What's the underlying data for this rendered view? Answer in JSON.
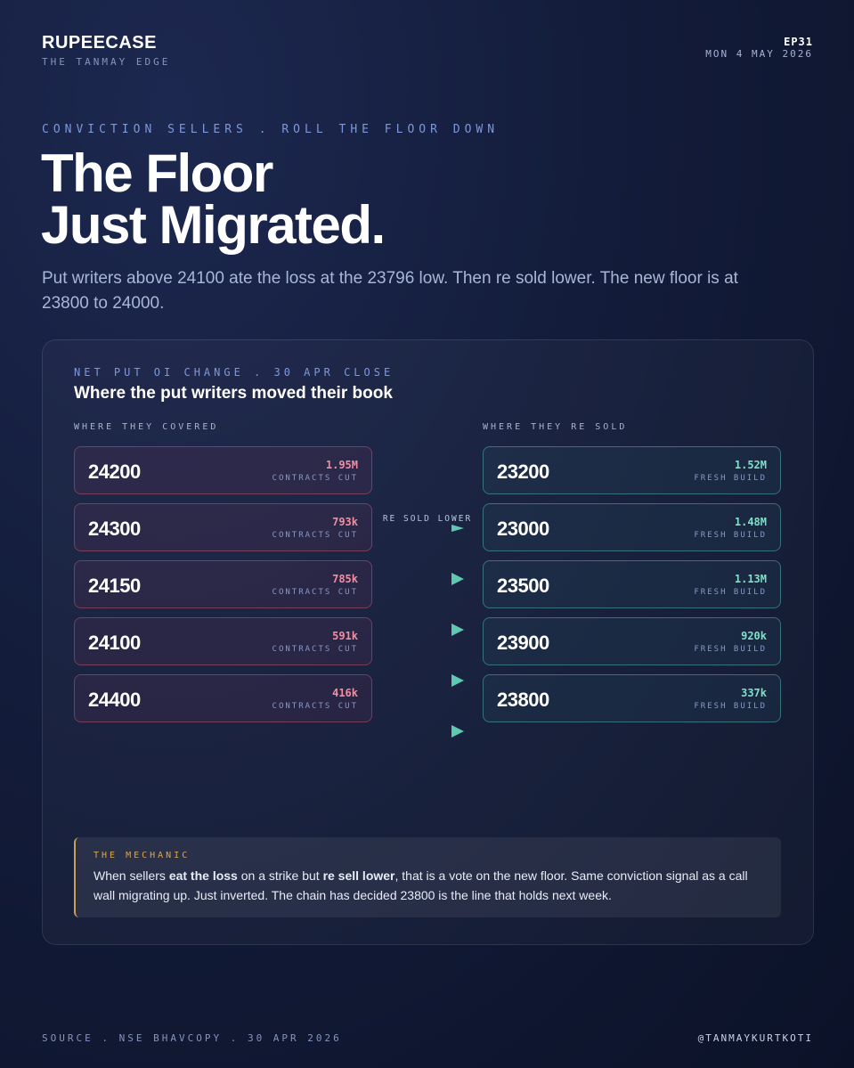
{
  "header": {
    "brand": "RUPEECASE",
    "tagline": "THE TANMAY EDGE",
    "episode": "EP31",
    "date": "MON 4 MAY 2026"
  },
  "hero": {
    "kicker": "CONVICTION SELLERS . ROLL THE FLOOR DOWN",
    "title_lines": [
      "The Floor",
      "Just Migrated."
    ],
    "lede": "Put writers above 24100 ate the loss at the 23796 low. Then re sold lower. The new floor is at 23800 to 24000."
  },
  "card": {
    "kicker": "NET PUT OI CHANGE . 30 APR CLOSE",
    "title": "Where the put writers moved their book",
    "connector": "RE SOLD LOWER",
    "left": {
      "heading": "WHERE THEY COVERED",
      "items": [
        {
          "strike": "24200",
          "amount": "1.95M",
          "note": "CONTRACTS CUT"
        },
        {
          "strike": "24300",
          "amount": "793k",
          "note": "CONTRACTS CUT"
        },
        {
          "strike": "24150",
          "amount": "785k",
          "note": "CONTRACTS CUT"
        },
        {
          "strike": "24100",
          "amount": "591k",
          "note": "CONTRACTS CUT"
        },
        {
          "strike": "24400",
          "amount": "416k",
          "note": "CONTRACTS CUT"
        }
      ]
    },
    "right": {
      "heading": "WHERE THEY RE SOLD",
      "items": [
        {
          "strike": "23200",
          "amount": "1.52M",
          "note": "FRESH BUILD"
        },
        {
          "strike": "23000",
          "amount": "1.48M",
          "note": "FRESH BUILD"
        },
        {
          "strike": "23500",
          "amount": "1.13M",
          "note": "FRESH BUILD"
        },
        {
          "strike": "23900",
          "amount": "920k",
          "note": "FRESH BUILD"
        },
        {
          "strike": "23800",
          "amount": "337k",
          "note": "FRESH BUILD"
        }
      ]
    }
  },
  "mechanic": {
    "label": "THE MECHANIC",
    "segments": [
      {
        "text": "When sellers ",
        "bold": false
      },
      {
        "text": "eat the loss",
        "bold": true
      },
      {
        "text": " on a strike but ",
        "bold": false
      },
      {
        "text": "re sell lower",
        "bold": true
      },
      {
        "text": ", that is a vote on the new floor. Same conviction signal as a call wall migrating up. Just inverted. The chain has decided 23800 is the line that holds next week.",
        "bold": false
      }
    ]
  },
  "footer": {
    "source": "SOURCE . NSE BHAVCOPY . 30 APR 2026",
    "handle": "@TANMAYKURTKOTI"
  }
}
